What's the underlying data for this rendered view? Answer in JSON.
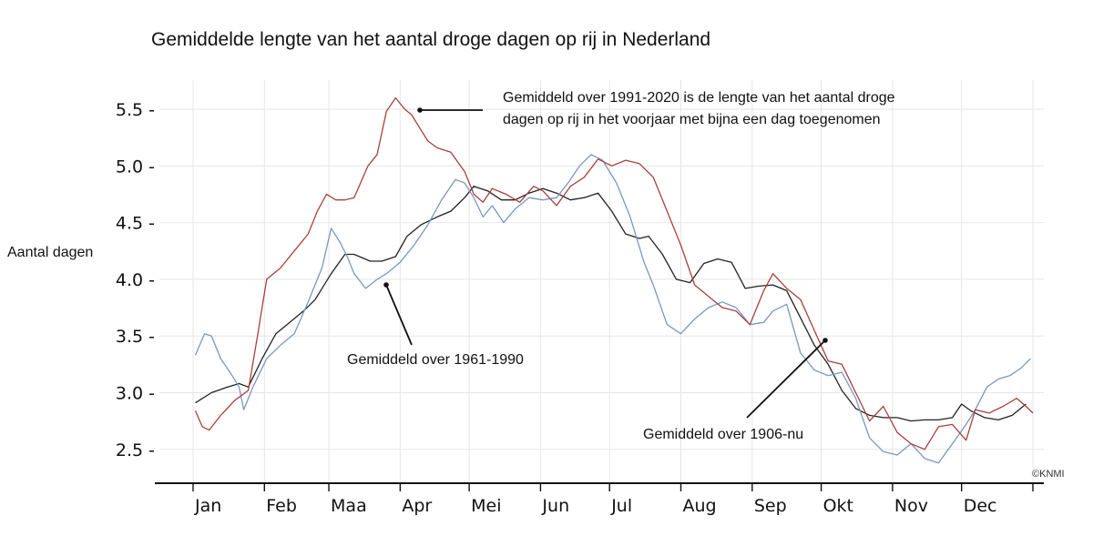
{
  "chart_data": {
    "type": "line",
    "title": "Gemiddelde lengte van het aantal droge dagen op rij in Nederland",
    "xlabel": "",
    "ylabel": "Aantal dagen",
    "ylim": [
      2.2,
      5.8
    ],
    "xlim": [
      0,
      365
    ],
    "grid": true,
    "yticks": [
      2.5,
      3.0,
      3.5,
      4.0,
      4.5,
      5.0,
      5.5
    ],
    "ytick_labels": [
      "2.5 -",
      "3.0 -",
      "3.5 -",
      "4.0 -",
      "4.5 -",
      "5.0 -",
      "5.5 -"
    ],
    "month_starts": [
      0,
      31,
      59,
      90,
      120,
      151,
      181,
      212,
      243,
      273,
      304,
      334,
      365
    ],
    "xtick_labels": [
      "Jan",
      "Feb",
      "Maa",
      "Apr",
      "Mei",
      "Jun",
      "Jul",
      "Aug",
      "Sep",
      "Okt",
      "Nov",
      "Dec"
    ],
    "series": [
      {
        "name": "Gemiddeld over 1906-nu",
        "color": "#222222",
        "x": [
          1,
          8,
          15,
          20,
          24,
          30,
          36,
          42,
          48,
          53,
          60,
          66,
          70,
          77,
          82,
          88,
          93,
          99,
          106,
          112,
          118,
          122,
          128,
          134,
          140,
          146,
          152,
          158,
          164,
          170,
          176,
          182,
          188,
          194,
          198,
          204,
          210,
          216,
          222,
          228,
          234,
          240,
          246,
          252,
          258,
          264,
          270,
          276,
          282,
          288,
          294,
          300,
          306,
          312,
          318,
          324,
          330,
          334,
          338,
          344,
          350,
          356,
          362
        ],
        "values": [
          2.91,
          3.0,
          3.05,
          3.08,
          3.05,
          3.3,
          3.52,
          3.62,
          3.72,
          3.82,
          4.05,
          4.22,
          4.22,
          4.16,
          4.16,
          4.2,
          4.38,
          4.48,
          4.55,
          4.6,
          4.72,
          4.82,
          4.78,
          4.7,
          4.7,
          4.76,
          4.8,
          4.76,
          4.7,
          4.72,
          4.76,
          4.6,
          4.4,
          4.36,
          4.38,
          4.22,
          4.0,
          3.97,
          4.14,
          4.18,
          4.15,
          3.92,
          3.94,
          3.95,
          3.9,
          3.66,
          3.42,
          3.25,
          3.02,
          2.86,
          2.8,
          2.78,
          2.78,
          2.75,
          2.76,
          2.76,
          2.78,
          2.9,
          2.84,
          2.78,
          2.76,
          2.8,
          2.9
        ]
      },
      {
        "name": "Gemiddeld over 1961-1990",
        "color": "#7a97c4",
        "x": [
          1,
          5,
          8,
          12,
          17,
          20,
          22,
          26,
          32,
          38,
          44,
          50,
          56,
          60,
          64,
          67,
          70,
          75,
          80,
          84,
          90,
          96,
          102,
          108,
          114,
          118,
          122,
          126,
          130,
          135,
          140,
          146,
          152,
          158,
          163,
          168,
          173,
          178,
          184,
          190,
          196,
          200,
          206,
          212,
          218,
          224,
          230,
          236,
          242,
          248,
          252,
          258,
          264,
          270,
          276,
          282,
          288,
          294,
          300,
          306,
          312,
          318,
          324,
          330,
          336,
          340,
          345,
          350,
          355,
          360,
          364
        ],
        "values": [
          3.33,
          3.52,
          3.5,
          3.3,
          3.15,
          3.05,
          2.85,
          3.05,
          3.3,
          3.42,
          3.52,
          3.8,
          4.1,
          4.45,
          4.32,
          4.2,
          4.05,
          3.92,
          4.0,
          4.05,
          4.15,
          4.3,
          4.48,
          4.7,
          4.88,
          4.85,
          4.72,
          4.55,
          4.65,
          4.5,
          4.62,
          4.72,
          4.7,
          4.72,
          4.85,
          5.0,
          5.1,
          5.05,
          4.85,
          4.55,
          4.15,
          3.95,
          3.6,
          3.52,
          3.65,
          3.75,
          3.8,
          3.75,
          3.6,
          3.62,
          3.72,
          3.78,
          3.35,
          3.2,
          3.15,
          3.18,
          2.95,
          2.6,
          2.48,
          2.45,
          2.55,
          2.42,
          2.38,
          2.55,
          2.72,
          2.85,
          3.05,
          3.12,
          3.15,
          3.22,
          3.3
        ]
      },
      {
        "name": "Gemiddeld over 1991-2020",
        "color": "#a8403a",
        "x": [
          1,
          4,
          7,
          12,
          18,
          24,
          28,
          32,
          38,
          44,
          50,
          54,
          58,
          62,
          66,
          70,
          76,
          80,
          84,
          88,
          92,
          95,
          98,
          102,
          106,
          112,
          118,
          122,
          126,
          130,
          136,
          142,
          148,
          152,
          158,
          164,
          170,
          176,
          182,
          188,
          194,
          200,
          206,
          212,
          218,
          224,
          230,
          236,
          242,
          248,
          252,
          258,
          264,
          270,
          276,
          282,
          288,
          294,
          300,
          306,
          312,
          318,
          324,
          330,
          336,
          340,
          346,
          352,
          358,
          362,
          365
        ],
        "values": [
          2.84,
          2.7,
          2.67,
          2.8,
          2.93,
          3.02,
          3.5,
          4.0,
          4.1,
          4.25,
          4.4,
          4.6,
          4.75,
          4.7,
          4.7,
          4.72,
          5.0,
          5.1,
          5.48,
          5.6,
          5.5,
          5.45,
          5.35,
          5.22,
          5.16,
          5.12,
          4.95,
          4.75,
          4.68,
          4.8,
          4.75,
          4.68,
          4.82,
          4.78,
          4.65,
          4.82,
          4.9,
          5.06,
          5.0,
          5.05,
          5.02,
          4.9,
          4.6,
          4.3,
          3.95,
          3.85,
          3.75,
          3.72,
          3.6,
          3.9,
          4.05,
          3.92,
          3.82,
          3.55,
          3.28,
          3.25,
          3.0,
          2.75,
          2.88,
          2.65,
          2.55,
          2.5,
          2.7,
          2.72,
          2.58,
          2.85,
          2.82,
          2.88,
          2.95,
          2.88,
          2.82
        ]
      }
    ],
    "annotations": [
      {
        "target": "Gemiddeld over 1991-2020",
        "lines": [
          "Gemiddeld over 1991-2020 is de lengte van het aantal droge",
          "dagen op rij in het voorjaar met bijna een dag toegenomen"
        ]
      },
      {
        "target": "Gemiddeld over 1961-1990",
        "lines": [
          "Gemiddeld over 1961-1990"
        ]
      },
      {
        "target": "Gemiddeld over 1906-nu",
        "lines": [
          "Gemiddeld over 1906-nu"
        ]
      }
    ],
    "copyright": "©KNMI"
  }
}
